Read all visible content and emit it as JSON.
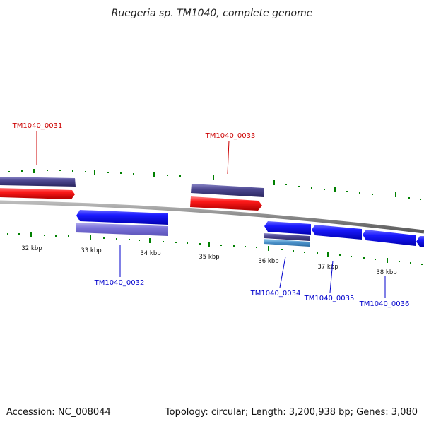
{
  "title": "Ruegeria sp. TM1040, complete genome",
  "footer": {
    "accession": "Accession: NC_008044",
    "summary": "Topology: circular; Length: 3,200,938 bp; Genes: 3,080"
  },
  "scale_labels": [
    "32 kbp",
    "33 kbp",
    "34 kbp",
    "35 kbp",
    "36 kbp",
    "37 kbp",
    "38 kbp"
  ],
  "genes": [
    {
      "id": "TM1040_0031",
      "strand": "forward",
      "color": "#cc0000"
    },
    {
      "id": "TM1040_0032",
      "strand": "reverse",
      "color": "#0000cc"
    },
    {
      "id": "TM1040_0033",
      "strand": "forward",
      "color": "#cc0000"
    },
    {
      "id": "TM1040_0034",
      "strand": "reverse",
      "color": "#0000cc"
    },
    {
      "id": "TM1040_0035",
      "strand": "reverse",
      "color": "#0000cc"
    },
    {
      "id": "TM1040_0036",
      "strand": "reverse",
      "color": "#0000cc"
    }
  ],
  "colors": {
    "forward_label": "#cc0000",
    "reverse_label": "#0000cc",
    "tick": "#008000",
    "backbone": "#888888"
  }
}
